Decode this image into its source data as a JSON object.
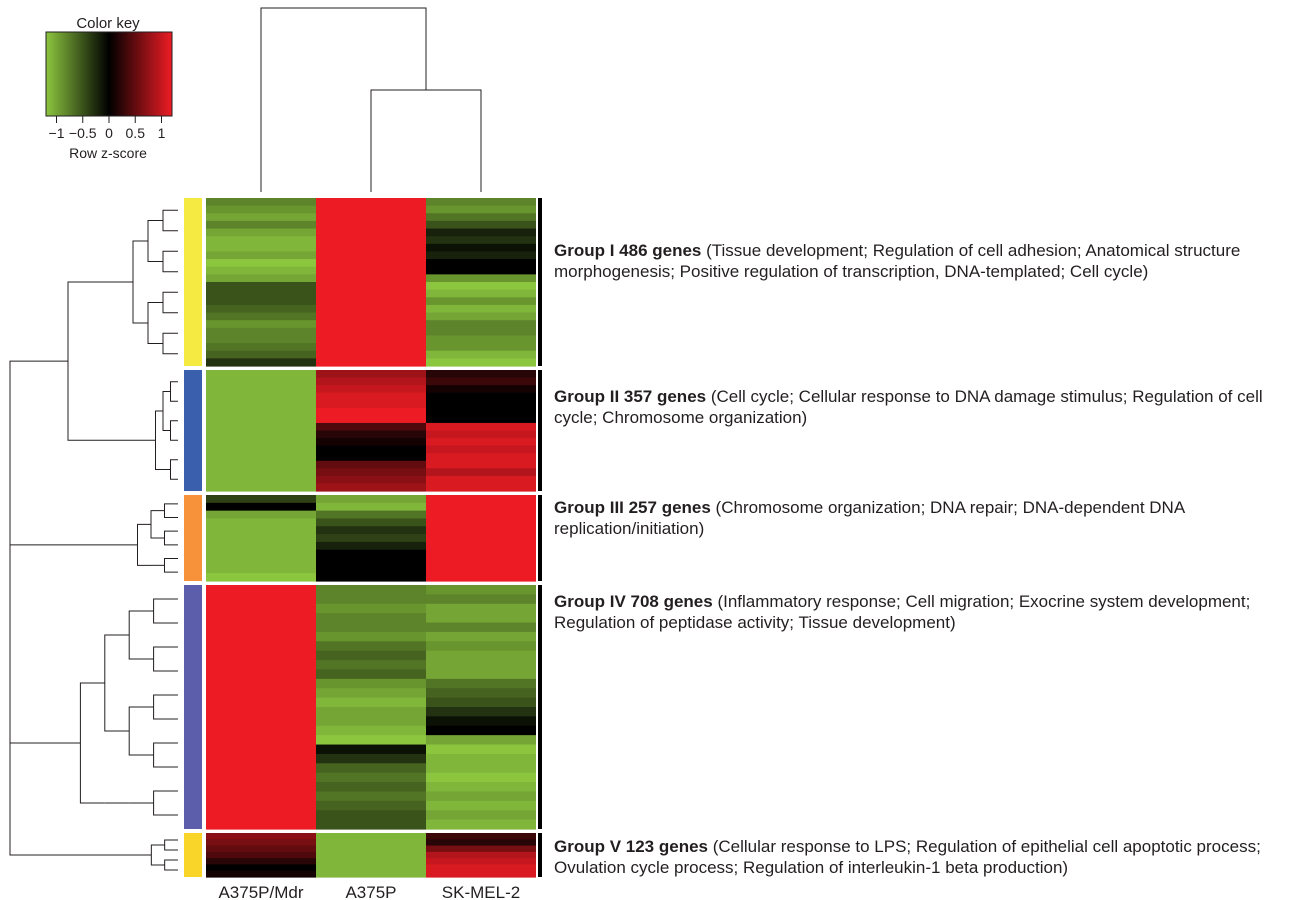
{
  "chart_data": {
    "type": "heatmap",
    "color_key": {
      "title": "Color key",
      "xlabel": "Row z-score",
      "ticks": [
        "−1",
        "−0.5",
        "0",
        "0.5",
        "1"
      ],
      "tick_values": [
        -1,
        -0.5,
        0,
        0.5,
        1
      ],
      "range": [
        -1.2,
        1.2
      ],
      "colors": [
        "#8cc63f",
        "#000000",
        "#ed1c24"
      ]
    },
    "columns": [
      "A375P/Mdr",
      "A375P",
      "SK-MEL-2"
    ],
    "column_dendrogram": "(A375P/Mdr,(A375P,SK-MEL-2))",
    "groups": [
      {
        "title": "Group I 486 genes",
        "description": " (Tissue development; Regulation of cell adhesion; Anatomical structure morphogenesis; Positive regulation of transcription, DNA-templated; Cell cycle)",
        "color": "#f4ea42",
        "genes": 486
      },
      {
        "title": "Group II 357 genes",
        "description": " (Cell cycle; Cellular response to DNA damage stimulus; Regulation of cell cycle; Chromosome organization)",
        "color": "#3a5fac",
        "genes": 357
      },
      {
        "title": "Group III 257 genes",
        "description": " (Chromosome organization; DNA repair; DNA-dependent DNA replication/initiation)",
        "color": "#f7923a",
        "genes": 257
      },
      {
        "title": "Group IV 708 genes",
        "description": " (Inflammatory response; Cell migration; Exocrine system development; Regulation of peptidase activity; Tissue development)",
        "color": "#5c5eab",
        "genes": 708
      },
      {
        "title": "Group V 123 genes",
        "description": " (Cellular response to LPS; Regulation of epithelial cell apoptotic process; Ovulation cycle process; Regulation of interleukin-1 beta production)",
        "color": "#f9d529",
        "genes": 123
      }
    ],
    "values": [
      [
        [
          -0.8,
          1.2,
          -0.8
        ],
        [
          -0.9,
          1.2,
          -0.9
        ],
        [
          -1.0,
          1.2,
          -0.7
        ],
        [
          -0.8,
          1.2,
          -0.5
        ],
        [
          -1.0,
          1.2,
          -0.2
        ],
        [
          -1.1,
          1.2,
          -0.3
        ],
        [
          -1.1,
          1.2,
          -0.1
        ],
        [
          -1.0,
          1.2,
          -0.2
        ],
        [
          -1.2,
          1.2,
          0.0
        ],
        [
          -1.1,
          1.2,
          0.0
        ],
        [
          -1.0,
          1.2,
          -0.9
        ],
        [
          -0.5,
          1.2,
          -1.2
        ],
        [
          -0.5,
          1.2,
          -1.1
        ],
        [
          -0.5,
          1.2,
          -0.9
        ],
        [
          -0.6,
          1.2,
          -1.1
        ],
        [
          -0.7,
          1.2,
          -1.0
        ],
        [
          -0.9,
          1.2,
          -0.8
        ],
        [
          -0.8,
          1.2,
          -0.8
        ],
        [
          -0.8,
          1.2,
          -0.9
        ],
        [
          -0.7,
          1.2,
          -0.9
        ],
        [
          -0.6,
          1.2,
          -1.1
        ],
        [
          -0.3,
          1.2,
          -1.2
        ]
      ],
      [
        [
          -1.1,
          0.8,
          0.2
        ],
        [
          -1.1,
          0.9,
          0.3
        ],
        [
          -1.1,
          1.0,
          0.1
        ],
        [
          -1.1,
          1.1,
          0.0
        ],
        [
          -1.1,
          1.1,
          0.0
        ],
        [
          -1.1,
          1.2,
          0.0
        ],
        [
          -1.1,
          1.2,
          0.0
        ],
        [
          -1.1,
          0.4,
          1.1
        ],
        [
          -1.1,
          0.2,
          1.0
        ],
        [
          -1.1,
          0.1,
          1.1
        ],
        [
          -1.1,
          0.0,
          1.0
        ],
        [
          -1.1,
          0.0,
          1.1
        ],
        [
          -1.1,
          0.5,
          1.1
        ],
        [
          -1.1,
          0.6,
          0.9
        ],
        [
          -1.1,
          0.7,
          1.1
        ],
        [
          -1.1,
          0.8,
          1.1
        ]
      ],
      [
        [
          -0.4,
          -1.0,
          1.2
        ],
        [
          0.0,
          -1.1,
          1.2
        ],
        [
          -1.0,
          -0.7,
          1.2
        ],
        [
          -1.1,
          -0.5,
          1.2
        ],
        [
          -1.1,
          -0.3,
          1.2
        ],
        [
          -1.1,
          -0.4,
          1.2
        ],
        [
          -1.1,
          -0.2,
          1.2
        ],
        [
          -1.1,
          0.0,
          1.2
        ],
        [
          -1.1,
          0.0,
          1.2
        ],
        [
          -1.1,
          0.0,
          1.2
        ],
        [
          -1.2,
          0.0,
          1.2
        ]
      ],
      [
        [
          1.2,
          -0.8,
          -0.9
        ],
        [
          1.2,
          -0.8,
          -0.8
        ],
        [
          1.2,
          -0.9,
          -1.0
        ],
        [
          1.2,
          -0.8,
          -1.0
        ],
        [
          1.2,
          -0.8,
          -0.8
        ],
        [
          1.2,
          -0.9,
          -1.0
        ],
        [
          1.2,
          -0.7,
          -0.9
        ],
        [
          1.2,
          -0.6,
          -1.0
        ],
        [
          1.2,
          -0.7,
          -1.0
        ],
        [
          1.2,
          -0.6,
          -1.0
        ],
        [
          1.2,
          -0.9,
          -0.7
        ],
        [
          1.2,
          -1.0,
          -0.6
        ],
        [
          1.2,
          -1.1,
          -0.5
        ],
        [
          1.2,
          -1.0,
          -0.3
        ],
        [
          1.2,
          -1.0,
          -0.1
        ],
        [
          1.2,
          -1.1,
          0.0
        ],
        [
          1.2,
          -1.2,
          -1.0
        ],
        [
          1.2,
          -0.1,
          -1.2
        ],
        [
          1.2,
          -0.3,
          -1.1
        ],
        [
          1.2,
          -0.6,
          -1.1
        ],
        [
          1.2,
          -0.7,
          -1.2
        ],
        [
          1.2,
          -0.6,
          -1.1
        ],
        [
          1.2,
          -0.7,
          -1.0
        ],
        [
          1.2,
          -0.6,
          -1.1
        ],
        [
          1.2,
          -0.5,
          -1.0
        ],
        [
          1.2,
          -0.5,
          -1.1
        ]
      ],
      [
        [
          0.7,
          -1.1,
          0.3
        ],
        [
          0.6,
          -1.1,
          0.2
        ],
        [
          0.5,
          -1.1,
          0.6
        ],
        [
          0.4,
          -1.1,
          0.9
        ],
        [
          0.2,
          -1.1,
          1.0
        ],
        [
          0.0,
          -1.1,
          1.1
        ],
        [
          0.1,
          -1.1,
          1.1
        ]
      ]
    ]
  }
}
